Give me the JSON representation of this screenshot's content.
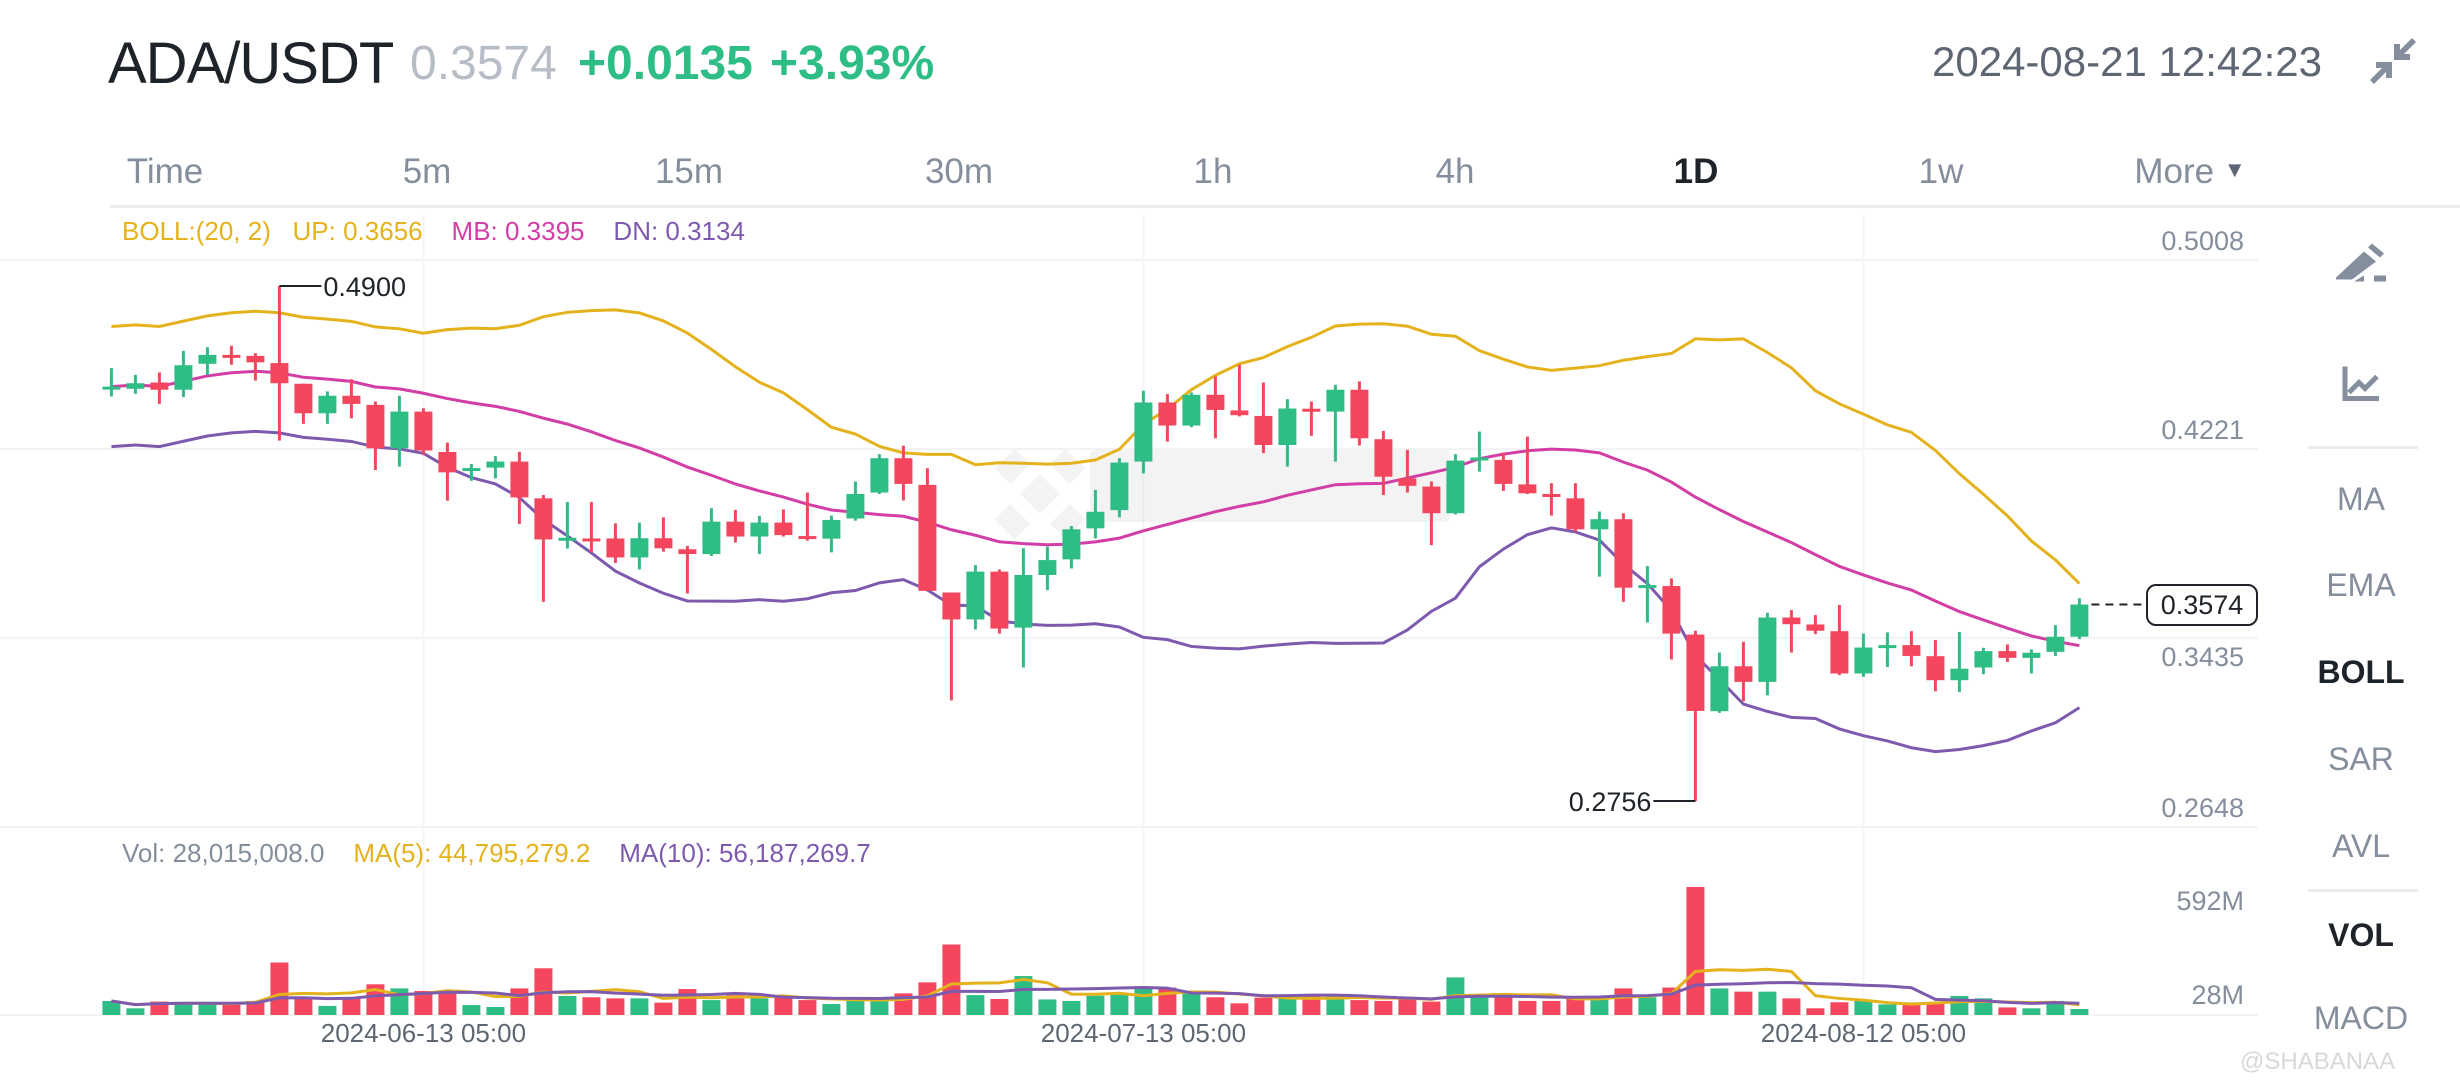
{
  "header": {
    "pair": "ADA/USDT",
    "last_price": "0.3574",
    "change": "+0.0135",
    "change_pct": "+3.93%",
    "datetime": "2024-08-21 12:42:23",
    "compress_icon": "compress-arrows-icon"
  },
  "tabs": [
    {
      "label": "Time"
    },
    {
      "label": "5m"
    },
    {
      "label": "15m"
    },
    {
      "label": "30m"
    },
    {
      "label": "1h"
    },
    {
      "label": "4h"
    },
    {
      "label": "1D",
      "active": true
    },
    {
      "label": "1w"
    },
    {
      "label": "More"
    }
  ],
  "boll_legend": {
    "params": "BOLL:(20, 2)",
    "up": "UP: 0.3656",
    "mb": "MB: 0.3395",
    "dn": "DN: 0.3134"
  },
  "vol_legend": {
    "vol": "Vol: 28,015,008.0",
    "ma5": "MA(5): 44,795,279.2",
    "ma10": "MA(10): 56,187,269.7"
  },
  "side_panel": {
    "tools": [
      "draw-pencil-icon",
      "indicator-chart-icon"
    ],
    "main_indicators": [
      "MA",
      "EMA",
      "BOLL",
      "SAR",
      "AVL"
    ],
    "active_main": "BOLL",
    "sub_indicators": [
      "VOL",
      "MACD"
    ],
    "active_sub": "VOL"
  },
  "current_price_label": "0.3574",
  "watermark": "@SHABANAA",
  "colors": {
    "up": "#2ebd85",
    "down": "#f6465d",
    "boll_up": "#e4b21d",
    "boll_mb": "#d23ea5",
    "boll_dn": "#7e5aaf",
    "vol_ma5": "#e4b21d",
    "vol_ma10": "#7e5aaf"
  },
  "chart_data": {
    "type": "candlestick",
    "interval": "1D",
    "price_ticks": [
      "0.5008",
      "0.4221",
      "0.3435",
      "0.2648"
    ],
    "price_range": [
      0.2648,
      0.5008
    ],
    "volume_ticks": [
      "592M",
      "28M"
    ],
    "volume_unit": "M",
    "x_tick_labels": [
      {
        "index": 13,
        "label": "2024-06-13 05:00"
      },
      {
        "index": 43,
        "label": "2024-07-13 05:00"
      },
      {
        "index": 73,
        "label": "2024-08-12 05:00"
      }
    ],
    "high_marker": {
      "index": 7,
      "label": "0.4900"
    },
    "low_marker": {
      "index": 66,
      "label": "0.2756"
    },
    "boll_period": 20,
    "boll_mult": 2,
    "fields": [
      "open",
      "high",
      "low",
      "close",
      "volume"
    ],
    "candles": [
      [
        0.447,
        0.4558,
        0.444,
        0.4481,
        65
      ],
      [
        0.4472,
        0.453,
        0.4451,
        0.4495,
        31
      ],
      [
        0.4498,
        0.454,
        0.4409,
        0.4468,
        62
      ],
      [
        0.4468,
        0.463,
        0.4437,
        0.457,
        59
      ],
      [
        0.4576,
        0.4645,
        0.453,
        0.4613,
        54
      ],
      [
        0.4613,
        0.4651,
        0.4572,
        0.4604,
        54
      ],
      [
        0.4609,
        0.462,
        0.4506,
        0.4582,
        65
      ],
      [
        0.4579,
        0.49,
        0.4256,
        0.4495,
        243
      ],
      [
        0.4493,
        0.4493,
        0.4326,
        0.437,
        85
      ],
      [
        0.437,
        0.4461,
        0.4326,
        0.4443,
        42
      ],
      [
        0.4443,
        0.4512,
        0.4349,
        0.4409,
        77
      ],
      [
        0.4405,
        0.4419,
        0.4134,
        0.4224,
        142
      ],
      [
        0.4224,
        0.4443,
        0.4148,
        0.4377,
        123
      ],
      [
        0.4377,
        0.4391,
        0.4196,
        0.4215,
        111
      ],
      [
        0.4209,
        0.4248,
        0.4006,
        0.4124,
        111
      ],
      [
        0.4131,
        0.4159,
        0.4089,
        0.4142,
        46
      ],
      [
        0.4144,
        0.4192,
        0.4099,
        0.4169,
        37
      ],
      [
        0.4169,
        0.421,
        0.3909,
        0.402,
        123
      ],
      [
        0.4016,
        0.403,
        0.3585,
        0.3845,
        216
      ],
      [
        0.3842,
        0.4001,
        0.3807,
        0.3852,
        88
      ],
      [
        0.3849,
        0.4001,
        0.3793,
        0.3842,
        82
      ],
      [
        0.3849,
        0.3912,
        0.3747,
        0.377,
        77
      ],
      [
        0.377,
        0.3915,
        0.372,
        0.385,
        77
      ],
      [
        0.385,
        0.3937,
        0.3794,
        0.3808,
        57
      ],
      [
        0.3804,
        0.3818,
        0.362,
        0.3784,
        120
      ],
      [
        0.3784,
        0.3975,
        0.3776,
        0.3919,
        69
      ],
      [
        0.3919,
        0.3968,
        0.3832,
        0.3857,
        92
      ],
      [
        0.3857,
        0.3943,
        0.3784,
        0.3915,
        77
      ],
      [
        0.3915,
        0.397,
        0.3857,
        0.3863,
        85
      ],
      [
        0.3859,
        0.404,
        0.384,
        0.3848,
        69
      ],
      [
        0.3848,
        0.3944,
        0.3791,
        0.3926,
        51
      ],
      [
        0.3932,
        0.4086,
        0.3923,
        0.4034,
        72
      ],
      [
        0.404,
        0.42,
        0.4034,
        0.4183,
        69
      ],
      [
        0.4183,
        0.4235,
        0.4007,
        0.4076,
        100
      ],
      [
        0.4072,
        0.4141,
        0.3631,
        0.3631,
        151
      ],
      [
        0.3624,
        0.3624,
        0.3175,
        0.3512,
        326
      ],
      [
        0.3512,
        0.3738,
        0.347,
        0.3711,
        92
      ],
      [
        0.3711,
        0.372,
        0.3453,
        0.3474,
        74
      ],
      [
        0.3478,
        0.3808,
        0.3312,
        0.3697,
        180
      ],
      [
        0.3697,
        0.3815,
        0.3634,
        0.3759,
        72
      ],
      [
        0.3762,
        0.3901,
        0.3724,
        0.3887,
        65
      ],
      [
        0.3891,
        0.4051,
        0.3849,
        0.396,
        89
      ],
      [
        0.3967,
        0.4183,
        0.3937,
        0.4165,
        97
      ],
      [
        0.4169,
        0.4464,
        0.412,
        0.4415,
        123
      ],
      [
        0.4415,
        0.445,
        0.4252,
        0.4319,
        127
      ],
      [
        0.4319,
        0.4457,
        0.4312,
        0.4447,
        100
      ],
      [
        0.4447,
        0.4523,
        0.4266,
        0.4384,
        82
      ],
      [
        0.4382,
        0.4572,
        0.4357,
        0.4362,
        54
      ],
      [
        0.4359,
        0.4498,
        0.4204,
        0.4238,
        80
      ],
      [
        0.4238,
        0.4429,
        0.4148,
        0.439,
        77
      ],
      [
        0.4389,
        0.4419,
        0.4276,
        0.4377,
        92
      ],
      [
        0.4377,
        0.4489,
        0.4169,
        0.4468,
        88
      ],
      [
        0.4468,
        0.4503,
        0.4236,
        0.4266,
        69
      ],
      [
        0.4262,
        0.4297,
        0.403,
        0.4106,
        65
      ],
      [
        0.4099,
        0.4218,
        0.404,
        0.4068,
        77
      ],
      [
        0.4065,
        0.4086,
        0.3821,
        0.3954,
        62
      ],
      [
        0.3954,
        0.42,
        0.3949,
        0.4173,
        174
      ],
      [
        0.4176,
        0.4294,
        0.4127,
        0.4186,
        82
      ],
      [
        0.4176,
        0.4206,
        0.4047,
        0.4076,
        82
      ],
      [
        0.4074,
        0.4273,
        0.4034,
        0.4037,
        65
      ],
      [
        0.4034,
        0.4079,
        0.3944,
        0.4023,
        65
      ],
      [
        0.4016,
        0.4079,
        0.3877,
        0.3887,
        80
      ],
      [
        0.3887,
        0.3961,
        0.369,
        0.3929,
        82
      ],
      [
        0.3929,
        0.3954,
        0.3585,
        0.3644,
        123
      ],
      [
        0.3647,
        0.3734,
        0.3499,
        0.3655,
        82
      ],
      [
        0.3651,
        0.3683,
        0.3345,
        0.3453,
        127
      ],
      [
        0.3449,
        0.3465,
        0.2756,
        0.3131,
        592
      ],
      [
        0.313,
        0.3374,
        0.3123,
        0.3317,
        123
      ],
      [
        0.3317,
        0.3419,
        0.3171,
        0.3252,
        108
      ],
      [
        0.3252,
        0.354,
        0.3196,
        0.352,
        108
      ],
      [
        0.352,
        0.3551,
        0.3374,
        0.3492,
        77
      ],
      [
        0.3491,
        0.353,
        0.3451,
        0.3465,
        31
      ],
      [
        0.3463,
        0.3572,
        0.328,
        0.3287,
        59
      ],
      [
        0.3287,
        0.3453,
        0.3273,
        0.3395,
        69
      ],
      [
        0.3395,
        0.3458,
        0.3314,
        0.3405,
        49
      ],
      [
        0.3405,
        0.3463,
        0.3317,
        0.336,
        46
      ],
      [
        0.3359,
        0.3426,
        0.3213,
        0.3259,
        54
      ],
      [
        0.3259,
        0.346,
        0.321,
        0.3307,
        88
      ],
      [
        0.3312,
        0.3394,
        0.3284,
        0.338,
        77
      ],
      [
        0.338,
        0.3408,
        0.3335,
        0.3352,
        35
      ],
      [
        0.3352,
        0.3387,
        0.3287,
        0.3373,
        31
      ],
      [
        0.3377,
        0.3488,
        0.336,
        0.344,
        65
      ],
      [
        0.344,
        0.36,
        0.343,
        0.3574,
        28
      ]
    ]
  }
}
